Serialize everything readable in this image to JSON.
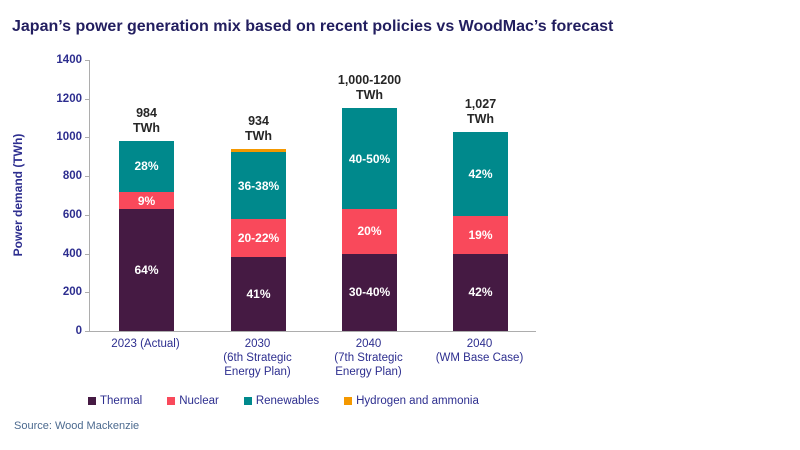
{
  "title": "Japan’s power generation mix based on recent policies vs WoodMac’s forecast",
  "source": "Source: Wood Mackenzie",
  "colors": {
    "thermal": "#451A43",
    "nuclear": "#F9495B",
    "renewables": "#00898C",
    "hydrogen": "#F49800",
    "title_text": "#221E5F",
    "axis_text": "#2D2E8F",
    "total_label_text": "#262626",
    "source_text": "#4C6A8F",
    "axis_line": "#ADADAD"
  },
  "chart_data": {
    "type": "bar",
    "stacked": true,
    "title": "Japan’s power generation mix based on recent policies vs WoodMac’s forecast",
    "xlabel": "",
    "ylabel": "Power demand (TWh)",
    "ylim": [
      0,
      1400
    ],
    "yticks": [
      0,
      200,
      400,
      600,
      800,
      1000,
      1200,
      1400
    ],
    "grid": false,
    "legend_position": "bottom",
    "categories": [
      "2023 (Actual)",
      "2030 (6th Strategic Energy Plan)",
      "2040 (7th Strategic Energy Plan)",
      "2040 (WM Base Case)"
    ],
    "category_lines": [
      [
        "2023 (Actual)"
      ],
      [
        "2030",
        "(6th Strategic",
        "Energy Plan)"
      ],
      [
        "2040",
        "(7th Strategic",
        "Energy Plan)"
      ],
      [
        "2040",
        "(WM Base Case)"
      ]
    ],
    "total_labels": [
      [
        "984",
        "TWh"
      ],
      [
        "934",
        "TWh"
      ],
      [
        "1,000-1200",
        "TWh"
      ],
      [
        "1,027",
        "TWh"
      ]
    ],
    "series": [
      {
        "name": "Thermal",
        "color": "#451A43",
        "values": [
          630,
          383,
          400,
          400
        ],
        "segment_labels": [
          "64%",
          "41%",
          "30-40%",
          "42%"
        ]
      },
      {
        "name": "Nuclear",
        "color": "#F9495B",
        "values": [
          88,
          196,
          230,
          195
        ],
        "segment_labels": [
          "9%",
          "20-22%",
          "20%",
          "19%"
        ]
      },
      {
        "name": "Renewables",
        "color": "#00898C",
        "values": [
          266,
          345,
          520,
          432
        ],
        "segment_labels": [
          "28%",
          "36-38%",
          "40-50%",
          "42%"
        ]
      },
      {
        "name": "Hydrogen and ammonia",
        "color": "#F49800",
        "values": [
          0,
          16,
          0,
          0
        ],
        "segment_labels": [
          "",
          "",
          "",
          ""
        ]
      }
    ]
  }
}
